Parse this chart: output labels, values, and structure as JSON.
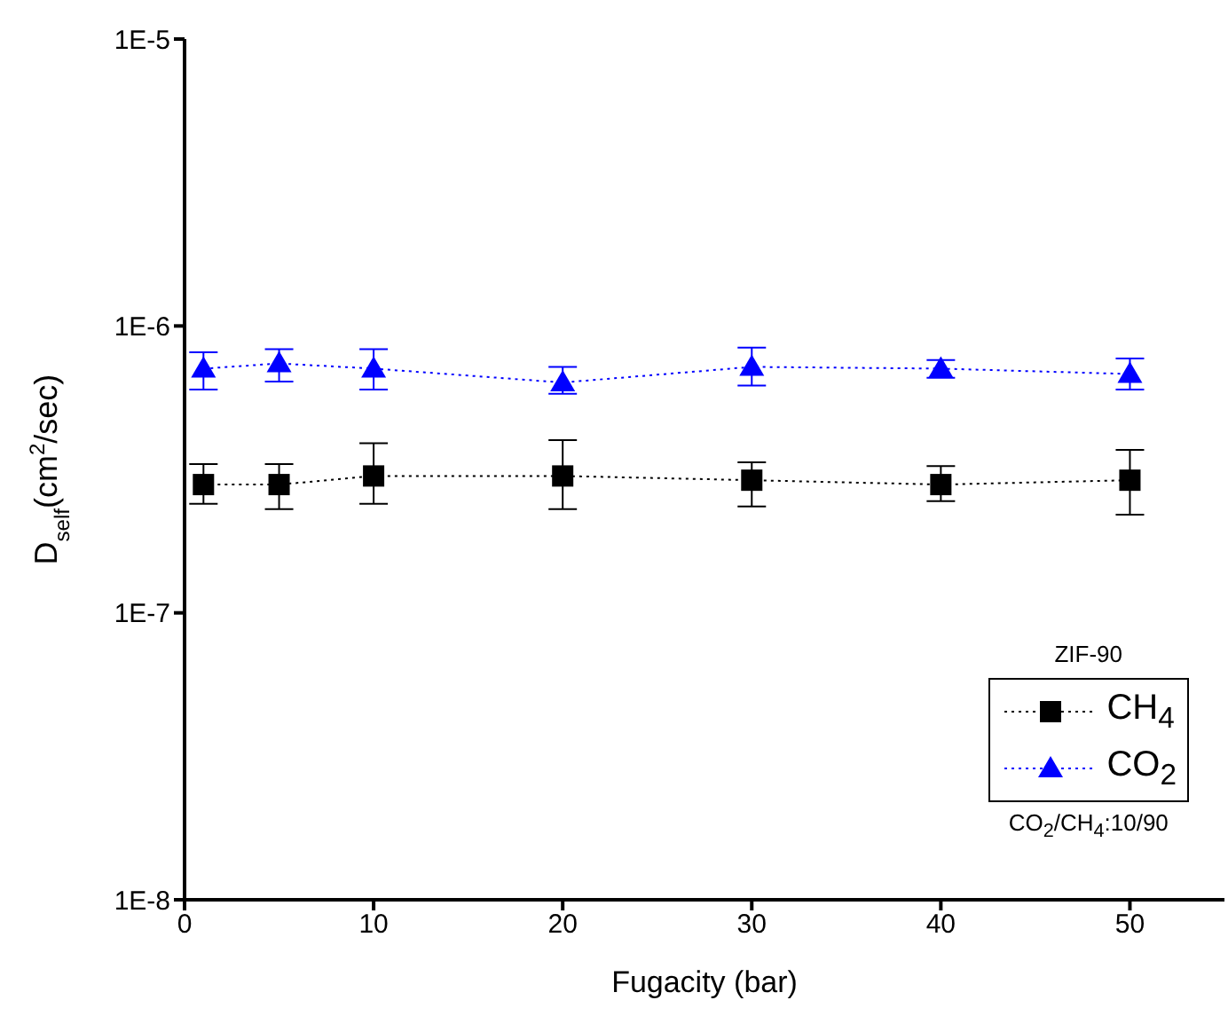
{
  "chart_data": {
    "type": "line",
    "xlabel": "Fugacity (bar)",
    "ylabel": "D$_{self}$(cm$^{2}$/sec)",
    "legend_title": "ZIF-90",
    "annotations": [
      "CO$_{2}$/CH$_{4}$:10/90"
    ],
    "x": [
      1,
      5,
      10,
      20,
      30,
      40,
      50
    ],
    "series": [
      {
        "name": "CH$_{4}$",
        "color": "#000000",
        "marker": "square",
        "values": [
          2.8e-07,
          2.8e-07,
          3e-07,
          3e-07,
          2.9e-07,
          2.8e-07,
          2.9e-07
        ],
        "errors": [
          [
            2.4e-07,
            3.3e-07
          ],
          [
            2.3e-07,
            3.3e-07
          ],
          [
            2.4e-07,
            3.9e-07
          ],
          [
            2.3e-07,
            4e-07
          ],
          [
            2.35e-07,
            3.35e-07
          ],
          [
            2.45e-07,
            3.25e-07
          ],
          [
            2.2e-07,
            3.7e-07
          ]
        ]
      },
      {
        "name": "CO$_{2}$",
        "color": "#0000ff",
        "marker": "triangle",
        "values": [
          7.1e-07,
          7.4e-07,
          7.1e-07,
          6.35e-07,
          7.2e-07,
          7.1e-07,
          6.8e-07
        ],
        "errors": [
          [
            6e-07,
            8.1e-07
          ],
          [
            6.4e-07,
            8.3e-07
          ],
          [
            6e-07,
            8.3e-07
          ],
          [
            5.8e-07,
            7.2e-07
          ],
          [
            6.2e-07,
            8.4e-07
          ],
          [
            6.6e-07,
            7.6e-07
          ],
          [
            6e-07,
            7.7e-07
          ]
        ]
      }
    ],
    "xlim": [
      0,
      55
    ],
    "xticks": [
      0,
      10,
      20,
      30,
      40,
      50
    ],
    "ylim": [
      1e-08,
      1e-05
    ],
    "yticks": [
      {
        "value": 1e-08,
        "label": "1E-8"
      },
      {
        "value": 1e-07,
        "label": "1E-7"
      },
      {
        "value": 1e-06,
        "label": "1E-6"
      },
      {
        "value": 1e-05,
        "label": "1E-5"
      }
    ],
    "log": "y",
    "legend": "bottom right",
    "line_style": "dotted"
  }
}
